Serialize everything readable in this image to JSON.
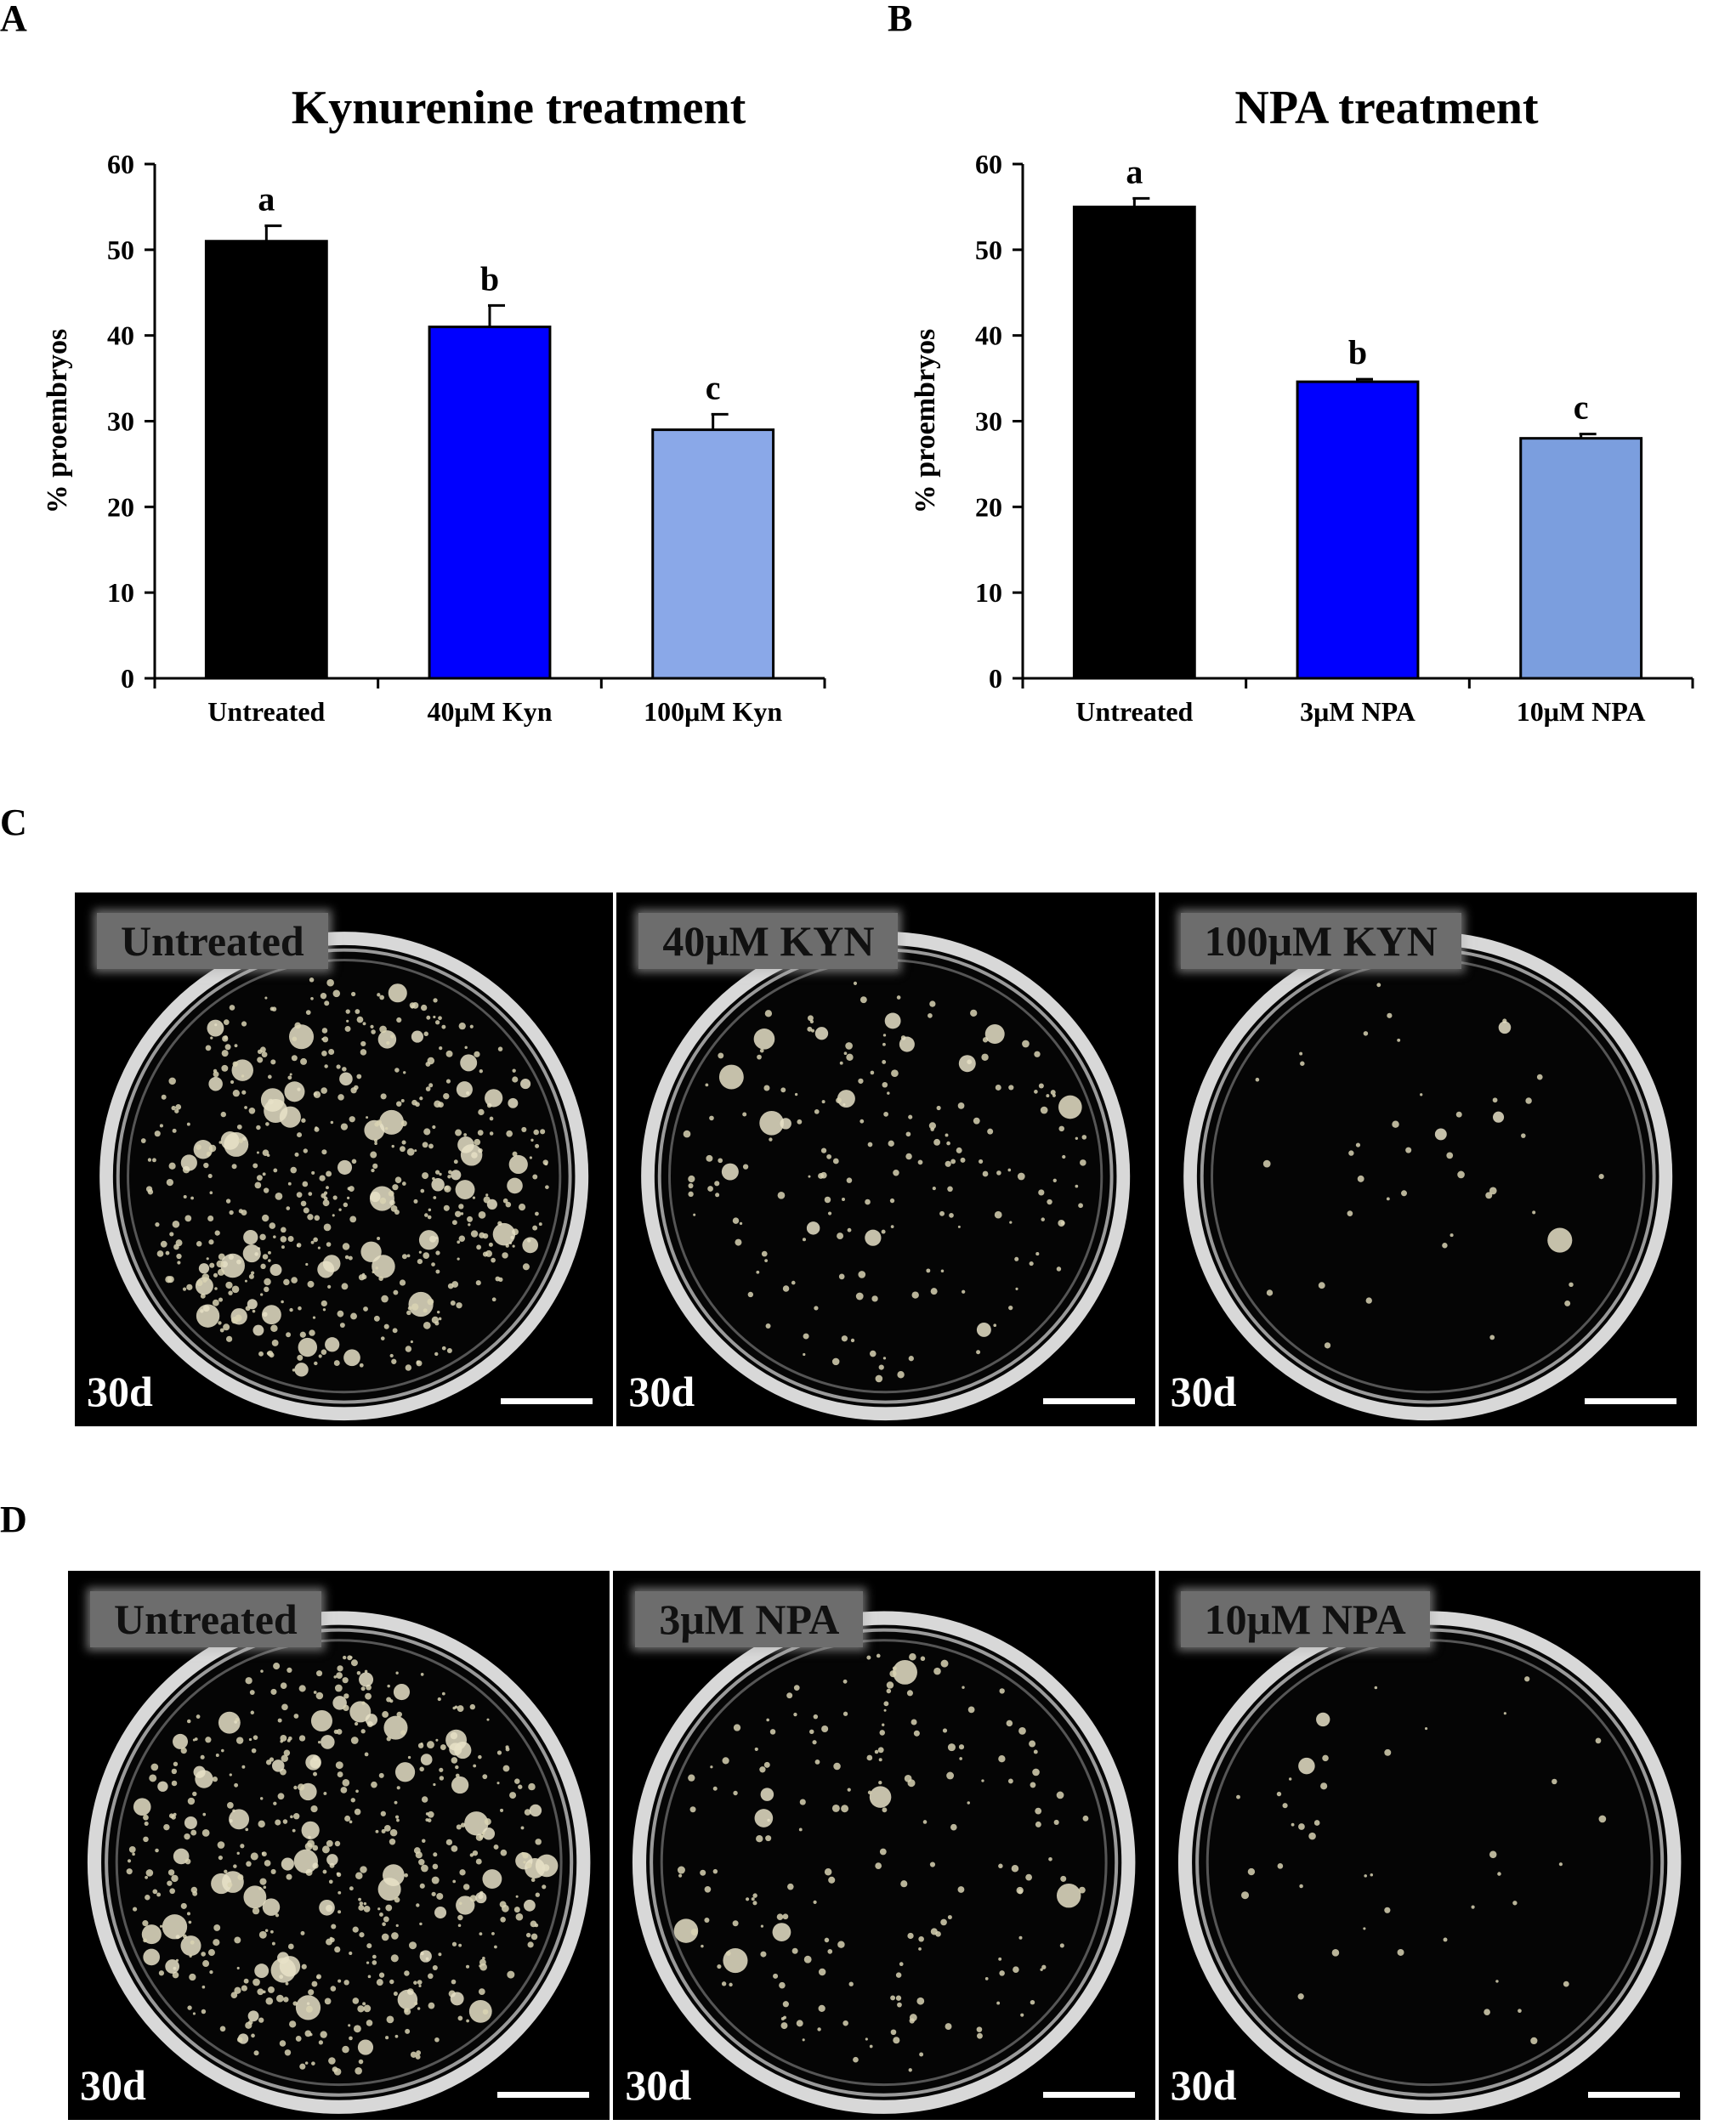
{
  "panel_letters": {
    "a": "A",
    "b": "B",
    "c": "C",
    "d": "D"
  },
  "chart_data": [
    {
      "type": "bar",
      "title": "Kynurenine treatment",
      "ylabel": "% proembryos",
      "xlabel": "",
      "ylim": [
        0,
        60
      ],
      "yticks": [
        0,
        10,
        20,
        30,
        40,
        50,
        60
      ],
      "categories": [
        "Untreated",
        "40μM Kyn",
        "100μM Kyn"
      ],
      "values": [
        51,
        41,
        29
      ],
      "errors": [
        1.8,
        2.5,
        1.8
      ],
      "significance": [
        "a",
        "b",
        "c"
      ],
      "colors": [
        "#000000",
        "#0000ff",
        "#8aa8e8"
      ],
      "grid": false,
      "legend": "none"
    },
    {
      "type": "bar",
      "title": "NPA treatment",
      "ylabel": "% proembryos",
      "xlabel": "",
      "ylim": [
        0,
        60
      ],
      "yticks": [
        0,
        10,
        20,
        30,
        40,
        50,
        60
      ],
      "categories": [
        "Untreated",
        "3μM NPA",
        "10μM NPA"
      ],
      "values": [
        55,
        34.6,
        28
      ],
      "errors": [
        1.0,
        0.3,
        0.5
      ],
      "significance": [
        "a",
        "b",
        "c"
      ],
      "colors": [
        "#000000",
        "#0000ff",
        "#7b9ede"
      ],
      "grid": false,
      "legend": "none"
    }
  ],
  "photos_c": [
    {
      "label": "Untreated",
      "time": "30d",
      "density": "high"
    },
    {
      "label": "40μM KYN",
      "time": "30d",
      "density": "medium"
    },
    {
      "label": "100μM KYN",
      "time": "30d",
      "density": "low"
    }
  ],
  "photos_d": [
    {
      "label": "Untreated",
      "time": "30d",
      "density": "high"
    },
    {
      "label": "3μM NPA",
      "time": "30d",
      "density": "medium"
    },
    {
      "label": "10μM NPA",
      "time": "30d",
      "density": "low"
    }
  ]
}
